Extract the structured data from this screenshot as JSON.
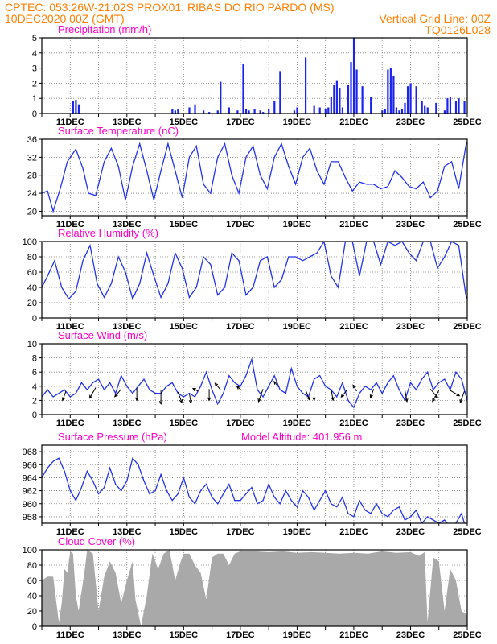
{
  "header": {
    "line1_left": "CPTEC:   053:26W-21:02S   PROX01: RIBAS DO RIO PARDO (MS)",
    "line2_left": "10DEC2020 00Z (GMT)",
    "line2_right": "Vertical Grid Line: 00Z",
    "line3_right": "TQ0126L028"
  },
  "colors": {
    "header": "#ff7f00",
    "panel_title": "#ff00cc",
    "line": "#2233ee",
    "bars": "#1a24ee",
    "cloud": "#a9a9a9",
    "grid": "#808080"
  },
  "x_axis": {
    "start_day": 10,
    "end_day": 25,
    "tick_labels": [
      "11DEC",
      "13DEC",
      "15DEC",
      "17DEC",
      "19DEC",
      "21DEC",
      "23DEC",
      "25DEC"
    ]
  },
  "chart_data": [
    {
      "type": "bar",
      "title": "Precipitation (mm/h)",
      "ylim": [
        0,
        5
      ],
      "yticks": [
        "0",
        "1",
        "2",
        "3",
        "4",
        "5"
      ],
      "x": [
        11.1,
        11.2,
        11.3,
        14.6,
        14.7,
        14.8,
        15.2,
        15.4,
        15.7,
        15.9,
        16.2,
        16.3,
        16.6,
        16.9,
        17.1,
        17.2,
        17.3,
        17.5,
        17.7,
        17.8,
        18.0,
        18.2,
        18.4,
        18.9,
        19.0,
        19.3,
        19.6,
        19.8,
        20.0,
        20.1,
        20.2,
        20.3,
        20.4,
        20.5,
        20.6,
        20.8,
        20.9,
        21.0,
        21.1,
        21.3,
        21.6,
        22.0,
        22.1,
        22.2,
        22.3,
        22.4,
        22.5,
        22.6,
        22.7,
        22.8,
        22.9,
        23.0,
        23.2,
        23.4,
        23.5,
        23.6,
        23.9,
        24.2,
        24.3,
        24.4,
        24.6,
        24.7,
        24.9
      ],
      "values": [
        0.8,
        0.9,
        0.6,
        0.3,
        0.2,
        0.3,
        0.4,
        0.6,
        0.2,
        0.1,
        0.2,
        2.1,
        0.4,
        0.2,
        3.3,
        0.3,
        0.2,
        0.3,
        0.2,
        0.1,
        0.3,
        0.8,
        2.8,
        0.2,
        0.4,
        3.7,
        0.5,
        0.4,
        0.3,
        0.4,
        1.1,
        1.9,
        2.2,
        1.7,
        0.4,
        1.9,
        3.4,
        5.0,
        2.9,
        1.8,
        1.1,
        0.2,
        0.3,
        2.9,
        3.0,
        2.5,
        0.4,
        0.2,
        0.3,
        0.7,
        1.8,
        2.0,
        1.8,
        0.8,
        0.5,
        0.4,
        0.7,
        0.2,
        1.0,
        1.1,
        0.8,
        1.0,
        0.8
      ]
    },
    {
      "type": "line",
      "title": "Surface Temperature (nC)",
      "ylim": [
        19,
        36
      ],
      "yticks": [
        "20",
        "24",
        "28",
        "32",
        "36"
      ],
      "x": [
        10.0,
        10.2,
        10.4,
        10.65,
        10.9,
        11.2,
        11.45,
        11.65,
        11.9,
        12.2,
        12.45,
        12.7,
        12.95,
        13.2,
        13.45,
        13.7,
        13.95,
        14.2,
        14.45,
        14.7,
        14.95,
        15.2,
        15.45,
        15.7,
        15.95,
        16.2,
        16.45,
        16.7,
        16.95,
        17.2,
        17.45,
        17.7,
        17.95,
        18.2,
        18.45,
        18.7,
        18.95,
        19.2,
        19.45,
        19.7,
        19.95,
        20.2,
        20.45,
        20.7,
        20.95,
        21.2,
        21.45,
        21.7,
        21.95,
        22.2,
        22.45,
        22.7,
        22.95,
        23.2,
        23.45,
        23.7,
        23.95,
        24.2,
        24.45,
        24.7,
        24.95,
        25.0
      ],
      "values": [
        24.0,
        24.5,
        20.0,
        25.0,
        31.0,
        33.8,
        29.5,
        24.0,
        23.5,
        31.0,
        34.0,
        30.0,
        22.5,
        30.0,
        35.0,
        29.0,
        22.5,
        29.0,
        35.0,
        29.0,
        23.0,
        32.0,
        34.5,
        26.0,
        24.0,
        32.0,
        35.0,
        28.0,
        24.0,
        32.0,
        34.5,
        28.0,
        25.0,
        32.0,
        35.0,
        30.0,
        26.0,
        32.0,
        34.0,
        29.0,
        26.0,
        31.0,
        31.0,
        27.5,
        24.5,
        26.5,
        26.0,
        26.0,
        25.0,
        25.5,
        29.0,
        27.5,
        25.5,
        25.0,
        26.5,
        23.0,
        24.5,
        30.0,
        31.0,
        25.0,
        34.5,
        35.5
      ]
    },
    {
      "type": "line",
      "title": "Relative Humidity (%)",
      "ylim": [
        0,
        100
      ],
      "yticks": [
        "0",
        "20",
        "40",
        "60",
        "80",
        "100"
      ],
      "x": [
        10.0,
        10.2,
        10.45,
        10.7,
        10.95,
        11.2,
        11.45,
        11.7,
        11.95,
        12.2,
        12.45,
        12.7,
        12.95,
        13.2,
        13.45,
        13.7,
        13.95,
        14.2,
        14.45,
        14.7,
        14.95,
        15.2,
        15.45,
        15.7,
        15.95,
        16.2,
        16.45,
        16.7,
        16.95,
        17.2,
        17.45,
        17.7,
        17.95,
        18.2,
        18.45,
        18.7,
        18.95,
        19.2,
        19.45,
        19.7,
        19.95,
        20.2,
        20.45,
        20.7,
        20.95,
        21.2,
        21.45,
        21.7,
        21.95,
        22.2,
        22.45,
        22.7,
        22.95,
        23.2,
        23.45,
        23.7,
        23.95,
        24.2,
        24.45,
        24.7,
        24.95,
        25.0
      ],
      "values": [
        40,
        55,
        75,
        40,
        25,
        35,
        75,
        95,
        45,
        27,
        45,
        80,
        60,
        25,
        45,
        85,
        55,
        27,
        45,
        85,
        65,
        27,
        40,
        80,
        70,
        30,
        40,
        85,
        75,
        30,
        40,
        75,
        80,
        40,
        50,
        80,
        80,
        75,
        80,
        85,
        100,
        55,
        40,
        100,
        100,
        55,
        100,
        100,
        70,
        100,
        95,
        100,
        85,
        75,
        100,
        100,
        65,
        80,
        100,
        95,
        30,
        25
      ]
    },
    {
      "type": "line",
      "title": "Surface Wind (m/s)",
      "ylim": [
        0,
        10
      ],
      "yticks": [
        "0",
        "2",
        "4",
        "6",
        "8",
        "10"
      ],
      "x": [
        10.0,
        10.2,
        10.4,
        10.6,
        10.8,
        11.0,
        11.2,
        11.4,
        11.6,
        11.8,
        12.0,
        12.2,
        12.4,
        12.6,
        12.8,
        13.0,
        13.2,
        13.4,
        13.6,
        13.8,
        14.0,
        14.2,
        14.4,
        14.6,
        14.8,
        15.0,
        15.2,
        15.4,
        15.6,
        15.8,
        16.0,
        16.2,
        16.4,
        16.6,
        16.8,
        17.0,
        17.2,
        17.4,
        17.6,
        17.8,
        18.0,
        18.2,
        18.4,
        18.6,
        18.8,
        19.0,
        19.2,
        19.4,
        19.6,
        19.8,
        20.0,
        20.2,
        20.4,
        20.6,
        20.8,
        21.0,
        21.2,
        21.4,
        21.6,
        21.8,
        22.0,
        22.2,
        22.4,
        22.6,
        22.8,
        23.0,
        23.2,
        23.4,
        23.6,
        23.8,
        24.0,
        24.2,
        24.4,
        24.6,
        24.8,
        25.0
      ],
      "values": [
        2.5,
        3.5,
        2.5,
        3.0,
        3.5,
        2.5,
        3.0,
        4.5,
        3.5,
        4.5,
        5.0,
        3.5,
        4.5,
        3.0,
        5.5,
        4.0,
        3.0,
        4.0,
        5.0,
        3.5,
        3.0,
        3.0,
        4.0,
        4.5,
        3.0,
        2.5,
        3.0,
        2.5,
        4.0,
        6.0,
        3.5,
        1.5,
        3.0,
        5.5,
        4.5,
        4.0,
        5.5,
        7.8,
        3.5,
        2.5,
        4.0,
        5.5,
        3.5,
        3.0,
        6.5,
        4.0,
        3.0,
        2.5,
        5.0,
        5.5,
        4.0,
        3.5,
        2.5,
        4.5,
        2.0,
        1.0,
        3.0,
        4.0,
        3.5,
        4.5,
        3.0,
        4.5,
        5.5,
        3.5,
        2.0,
        4.5,
        3.5,
        5.0,
        6.0,
        3.5,
        4.5,
        5.0,
        3.5,
        6.0,
        5.0,
        2.0
      ],
      "barbs": [
        {
          "x": 10.85,
          "y": 3.3,
          "dir": 200,
          "len": 1.4
        },
        {
          "x": 11.9,
          "y": 3.8,
          "dir": 210,
          "len": 1.7
        },
        {
          "x": 12.8,
          "y": 3.6,
          "dir": 220,
          "len": 1.4
        },
        {
          "x": 13.35,
          "y": 3.8,
          "dir": 180,
          "len": 1.8
        },
        {
          "x": 14.2,
          "y": 3.5,
          "dir": 180,
          "len": 2.0
        },
        {
          "x": 14.8,
          "y": 3.2,
          "dir": 160,
          "len": 1.6
        },
        {
          "x": 15.2,
          "y": 3.0,
          "dir": 170,
          "len": 1.4
        },
        {
          "x": 15.5,
          "y": 3.3,
          "dir": 300,
          "len": 0.8
        },
        {
          "x": 15.9,
          "y": 3.6,
          "dir": 180,
          "len": 1.6
        },
        {
          "x": 16.3,
          "y": 3.5,
          "dir": 320,
          "len": 1.2
        },
        {
          "x": 17.05,
          "y": 3.4,
          "dir": 310,
          "len": 0.9
        },
        {
          "x": 17.8,
          "y": 3.6,
          "dir": 200,
          "len": 1.9
        },
        {
          "x": 18.35,
          "y": 3.9,
          "dir": 320,
          "len": 1.0
        },
        {
          "x": 19.3,
          "y": 3.5,
          "dir": 160,
          "len": 1.5
        },
        {
          "x": 19.6,
          "y": 3.4,
          "dir": 180,
          "len": 1.4
        },
        {
          "x": 20.2,
          "y": 3.6,
          "dir": 170,
          "len": 1.6
        },
        {
          "x": 20.75,
          "y": 3.4,
          "dir": 220,
          "len": 1.2
        },
        {
          "x": 21.1,
          "y": 3.3,
          "dir": 330,
          "len": 1.0
        },
        {
          "x": 21.7,
          "y": 3.6,
          "dir": 200,
          "len": 1.3
        },
        {
          "x": 22.8,
          "y": 3.5,
          "dir": 170,
          "len": 1.7
        },
        {
          "x": 23.7,
          "y": 3.6,
          "dir": 140,
          "len": 1.6
        },
        {
          "x": 24.0,
          "y": 3.4,
          "dir": 210,
          "len": 1.8
        },
        {
          "x": 24.4,
          "y": 3.4,
          "dir": 120,
          "len": 1.5
        },
        {
          "x": 24.9,
          "y": 3.3,
          "dir": 200,
          "len": 1.7
        }
      ]
    },
    {
      "type": "line",
      "title": "Surface Pressure (hPa)",
      "annotation": "Model Altitude: 401.956 m",
      "ylim": [
        957,
        969
      ],
      "yticks": [
        "958",
        "960",
        "962",
        "964",
        "966",
        "968"
      ],
      "x": [
        10.0,
        10.2,
        10.4,
        10.6,
        10.8,
        11.0,
        11.2,
        11.4,
        11.6,
        11.8,
        12.0,
        12.2,
        12.4,
        12.6,
        12.8,
        13.0,
        13.2,
        13.4,
        13.6,
        13.8,
        14.0,
        14.2,
        14.4,
        14.6,
        14.8,
        15.0,
        15.2,
        15.4,
        15.6,
        15.8,
        16.0,
        16.2,
        16.4,
        16.6,
        16.8,
        17.0,
        17.2,
        17.4,
        17.6,
        17.8,
        18.0,
        18.2,
        18.4,
        18.6,
        18.8,
        19.0,
        19.2,
        19.4,
        19.6,
        19.8,
        20.0,
        20.2,
        20.4,
        20.6,
        20.8,
        21.0,
        21.2,
        21.4,
        21.6,
        21.8,
        22.0,
        22.2,
        22.4,
        22.6,
        22.8,
        23.0,
        23.2,
        23.4,
        23.6,
        23.8,
        24.0,
        24.2,
        24.4,
        24.6,
        24.8,
        25.0
      ],
      "values": [
        964.0,
        965.5,
        966.5,
        967.0,
        965.0,
        962.0,
        960.5,
        962.5,
        965.0,
        963.5,
        961.5,
        962.5,
        965.5,
        963.0,
        962.0,
        963.5,
        967.0,
        966.0,
        963.5,
        961.5,
        962.0,
        964.5,
        962.0,
        960.5,
        961.5,
        964.0,
        961.0,
        960.0,
        962.0,
        963.0,
        961.0,
        960.0,
        961.5,
        963.0,
        960.5,
        960.5,
        961.5,
        962.5,
        960.0,
        960.5,
        963.0,
        961.0,
        960.0,
        962.0,
        960.5,
        959.5,
        962.0,
        961.0,
        959.0,
        960.5,
        962.0,
        960.0,
        959.5,
        961.0,
        958.5,
        958.0,
        960.5,
        959.0,
        958.5,
        960.0,
        958.5,
        958.0,
        959.0,
        959.5,
        957.5,
        958.0,
        959.0,
        957.0,
        958.0,
        957.5,
        957.0,
        957.5,
        956.5,
        957.0,
        958.5,
        955.5
      ]
    },
    {
      "type": "area",
      "title": "Cloud Cover (%)",
      "ylim": [
        0,
        100
      ],
      "yticks": [
        "0",
        "20",
        "40",
        "60",
        "80",
        "100"
      ],
      "x": [
        10.0,
        10.2,
        10.4,
        10.6,
        10.7,
        10.8,
        10.9,
        11.0,
        11.1,
        11.2,
        11.3,
        11.5,
        11.6,
        11.8,
        12.0,
        12.2,
        12.4,
        12.6,
        12.8,
        13.0,
        13.2,
        13.3,
        13.5,
        13.7,
        13.9,
        14.1,
        14.3,
        14.5,
        14.7,
        14.9,
        15.0,
        15.2,
        15.4,
        15.6,
        15.8,
        16.0,
        16.2,
        16.4,
        16.6,
        16.8,
        17.0,
        17.5,
        18.0,
        18.5,
        19.0,
        19.5,
        20.0,
        20.5,
        21.0,
        21.5,
        22.0,
        22.5,
        23.0,
        23.3,
        23.5,
        23.6,
        23.8,
        24.0,
        24.2,
        24.4,
        24.6,
        24.8,
        25.0
      ],
      "values": [
        60,
        65,
        65,
        5,
        30,
        75,
        70,
        98,
        95,
        40,
        20,
        70,
        100,
        95,
        20,
        65,
        85,
        70,
        30,
        60,
        85,
        35,
        0,
        40,
        95,
        75,
        95,
        100,
        60,
        85,
        95,
        95,
        80,
        70,
        35,
        90,
        95,
        95,
        80,
        95,
        98,
        98,
        97,
        98,
        96,
        97,
        96,
        95,
        96,
        95,
        98,
        96,
        97,
        92,
        97,
        5,
        90,
        85,
        20,
        75,
        60,
        20,
        15
      ]
    }
  ]
}
